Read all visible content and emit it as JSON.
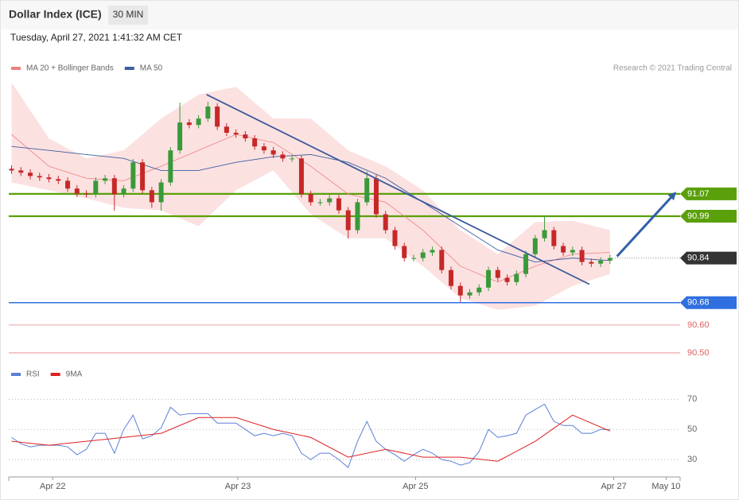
{
  "chart_data": [
    {
      "type": "candlestick",
      "title": "Dollar Index (ICE)",
      "timeframe": "30 MIN",
      "subtitle": "Tuesday, April 27, 2021 1:41:32 AM CET",
      "credit": "Research © 2021 Trading Central",
      "xlim": [
        -0.3,
        71.5
      ],
      "ylim": [
        90.46,
        91.48
      ],
      "up_color": "#3a9a3a",
      "down_color": "#c62828",
      "open": [
        91.16,
        91.154,
        91.146,
        91.134,
        91.129,
        91.123,
        91.117,
        91.089,
        91.071,
        91.069,
        91.117,
        91.126,
        91.069,
        91.089,
        91.183,
        91.083,
        91.04,
        91.111,
        91.226,
        91.326,
        91.317,
        91.34,
        91.383,
        91.311,
        91.289,
        91.283,
        91.269,
        91.24,
        91.226,
        91.211,
        91.197,
        91.197,
        91.069,
        91.04,
        91.04,
        91.054,
        91.011,
        90.94,
        91.04,
        91.126,
        90.997,
        90.94,
        90.883,
        90.84,
        90.84,
        90.86,
        90.869,
        90.797,
        90.74,
        90.706,
        90.717,
        90.734,
        90.797,
        90.769,
        90.754,
        90.783,
        90.854,
        90.911,
        90.94,
        90.883,
        90.86,
        90.869,
        90.826,
        90.82,
        90.831
      ],
      "high": [
        91.172,
        91.166,
        91.158,
        91.146,
        91.141,
        91.135,
        91.129,
        91.101,
        91.083,
        91.129,
        91.138,
        91.138,
        91.101,
        91.195,
        91.195,
        91.095,
        91.123,
        91.238,
        91.397,
        91.338,
        91.352,
        91.4,
        91.395,
        91.323,
        91.301,
        91.295,
        91.281,
        91.252,
        91.238,
        91.223,
        91.209,
        91.209,
        91.081,
        91.052,
        91.066,
        91.066,
        91.023,
        91.052,
        91.15,
        91.138,
        91.009,
        90.952,
        90.895,
        90.852,
        90.872,
        90.881,
        90.881,
        90.809,
        90.752,
        90.729,
        90.746,
        90.809,
        90.809,
        90.781,
        90.795,
        90.866,
        90.923,
        90.991,
        90.952,
        90.895,
        90.881,
        90.881,
        90.838,
        90.843,
        90.852
      ],
      "low": [
        91.142,
        91.134,
        91.122,
        91.117,
        91.111,
        91.105,
        91.077,
        91.059,
        91.057,
        91.057,
        91.105,
        91.01,
        91.057,
        91.077,
        91.071,
        91.02,
        91.01,
        91.099,
        91.214,
        91.305,
        91.305,
        91.328,
        91.299,
        91.277,
        91.271,
        91.257,
        91.228,
        91.214,
        91.199,
        91.185,
        91.185,
        91.057,
        91.028,
        91.028,
        91.028,
        90.999,
        90.91,
        90.928,
        91.028,
        90.985,
        90.928,
        90.871,
        90.828,
        90.828,
        90.828,
        90.848,
        90.785,
        90.728,
        90.683,
        90.694,
        90.705,
        90.722,
        90.757,
        90.742,
        90.742,
        90.771,
        90.842,
        90.899,
        90.871,
        90.848,
        90.848,
        90.814,
        90.808,
        90.808,
        90.819
      ],
      "close": [
        91.154,
        91.146,
        91.134,
        91.129,
        91.123,
        91.117,
        91.089,
        91.071,
        91.069,
        91.117,
        91.126,
        91.069,
        91.089,
        91.183,
        91.083,
        91.04,
        91.111,
        91.226,
        91.326,
        91.317,
        91.34,
        91.383,
        91.311,
        91.289,
        91.283,
        91.269,
        91.24,
        91.226,
        91.211,
        91.197,
        91.197,
        91.069,
        91.04,
        91.04,
        91.054,
        91.011,
        90.94,
        91.04,
        91.126,
        90.997,
        90.94,
        90.883,
        90.84,
        90.84,
        90.86,
        90.869,
        90.797,
        90.74,
        90.706,
        90.717,
        90.734,
        90.797,
        90.769,
        90.754,
        90.783,
        90.854,
        90.911,
        90.94,
        90.883,
        90.86,
        90.869,
        90.826,
        90.82,
        90.831,
        90.84
      ],
      "series": [
        {
          "name": "MA 20 + Bollinger Bands",
          "color": "#f08080",
          "band_color": "#fcdcdc",
          "x": [
            0,
            4,
            8,
            12,
            16,
            20,
            24,
            28,
            32,
            36,
            40,
            44,
            48,
            52,
            56,
            60,
            64
          ],
          "values": [
            91.283,
            91.169,
            91.126,
            91.117,
            91.169,
            91.226,
            91.283,
            91.254,
            91.169,
            91.069,
            91.04,
            90.94,
            90.811,
            90.754,
            90.811,
            90.854,
            90.86
          ],
          "upper": [
            91.469,
            91.269,
            91.197,
            91.226,
            91.34,
            91.426,
            91.454,
            91.34,
            91.34,
            91.226,
            91.169,
            91.083,
            90.94,
            90.854,
            90.969,
            90.974,
            90.94
          ],
          "lower": [
            91.111,
            91.083,
            91.054,
            91.02,
            91.011,
            90.954,
            91.083,
            91.154,
            90.997,
            90.911,
            90.911,
            90.811,
            90.697,
            90.654,
            90.669,
            90.74,
            90.783
          ]
        },
        {
          "name": "MA 50",
          "color": "#3a5fa0",
          "x": [
            0,
            4,
            8,
            12,
            16,
            20,
            24,
            28,
            32,
            36,
            40,
            44,
            48,
            52,
            56,
            60,
            64
          ],
          "values": [
            91.24,
            91.226,
            91.211,
            91.197,
            91.154,
            91.154,
            91.183,
            91.203,
            91.211,
            91.183,
            91.126,
            91.04,
            90.954,
            90.869,
            90.826,
            90.84,
            90.831
          ]
        }
      ],
      "trendline": {
        "color": "#3a5a9a",
        "x": [
          20.85,
          61.8
        ],
        "y": [
          91.426,
          90.746
        ]
      },
      "arrow": {
        "color": "#3060a8",
        "x": [
          64.75,
          70.85
        ],
        "y": [
          90.846,
          91.069
        ]
      },
      "levels": [
        {
          "value": 91.07,
          "label": "91.07",
          "color": "#5aa00a",
          "line": "solid",
          "tag": true
        },
        {
          "value": 90.99,
          "label": "90.99",
          "color": "#5aa00a",
          "line": "solid",
          "tag": true
        },
        {
          "value": 90.84,
          "label": "90.84",
          "color": "#333333",
          "line": "dotted",
          "tag": true
        },
        {
          "value": 90.68,
          "label": "90.68",
          "color": "#2f6fe0",
          "line": "solid",
          "tag": true
        },
        {
          "value": 90.6,
          "label": "90.60",
          "color": "#e06060",
          "line": "thin",
          "tag": false
        },
        {
          "value": 90.5,
          "label": "90.50",
          "color": "#e06060",
          "line": "thin",
          "tag": false
        }
      ]
    },
    {
      "type": "line",
      "xlim": [
        -0.3,
        71.5
      ],
      "ylim": [
        19.5,
        76.5
      ],
      "yticks": [
        30,
        50,
        70
      ],
      "grid": true,
      "xticks": [
        {
          "value": 4.4,
          "label": "Apr 22"
        },
        {
          "value": 24.2,
          "label": "Apr 23"
        },
        {
          "value": 43.2,
          "label": "Apr 25"
        },
        {
          "value": 64.4,
          "label": "Apr 27"
        },
        {
          "value": 70,
          "label": "May 10"
        }
      ],
      "series": [
        {
          "name": "RSI",
          "color": "#5b7fd8",
          "values": [
            44.7,
            40.5,
            38.4,
            39.5,
            39.5,
            39.5,
            38.4,
            33.2,
            36.8,
            47.4,
            47.4,
            34.2,
            50,
            59.5,
            43.7,
            45.8,
            51.1,
            64.7,
            59.5,
            60.5,
            60.5,
            60.5,
            54.2,
            54.2,
            54.2,
            50,
            45.8,
            47.4,
            45.8,
            47.4,
            45.8,
            34.2,
            30,
            34.2,
            34.2,
            30,
            24.7,
            42.1,
            55.3,
            42.1,
            36.8,
            33.2,
            28.9,
            33.2,
            36.8,
            34.2,
            30,
            28.9,
            26.3,
            27.9,
            35.3,
            50,
            44.7,
            45.8,
            47.4,
            59.5,
            63.2,
            66.8,
            55.3,
            52.6,
            52.6,
            47.4,
            47.4,
            50,
            50
          ]
        },
        {
          "name": "9MA",
          "color": "#e02020",
          "x": [
            0,
            4,
            8,
            12,
            16,
            20,
            24,
            28,
            32,
            36,
            40,
            44,
            48,
            52,
            56,
            60,
            64
          ],
          "values": [
            42.1,
            39.5,
            42.1,
            44.7,
            47.4,
            57.9,
            57.9,
            50,
            44.7,
            31.6,
            36.8,
            31.6,
            31.6,
            28.9,
            42.1,
            59.5,
            48.9
          ]
        }
      ]
    }
  ]
}
